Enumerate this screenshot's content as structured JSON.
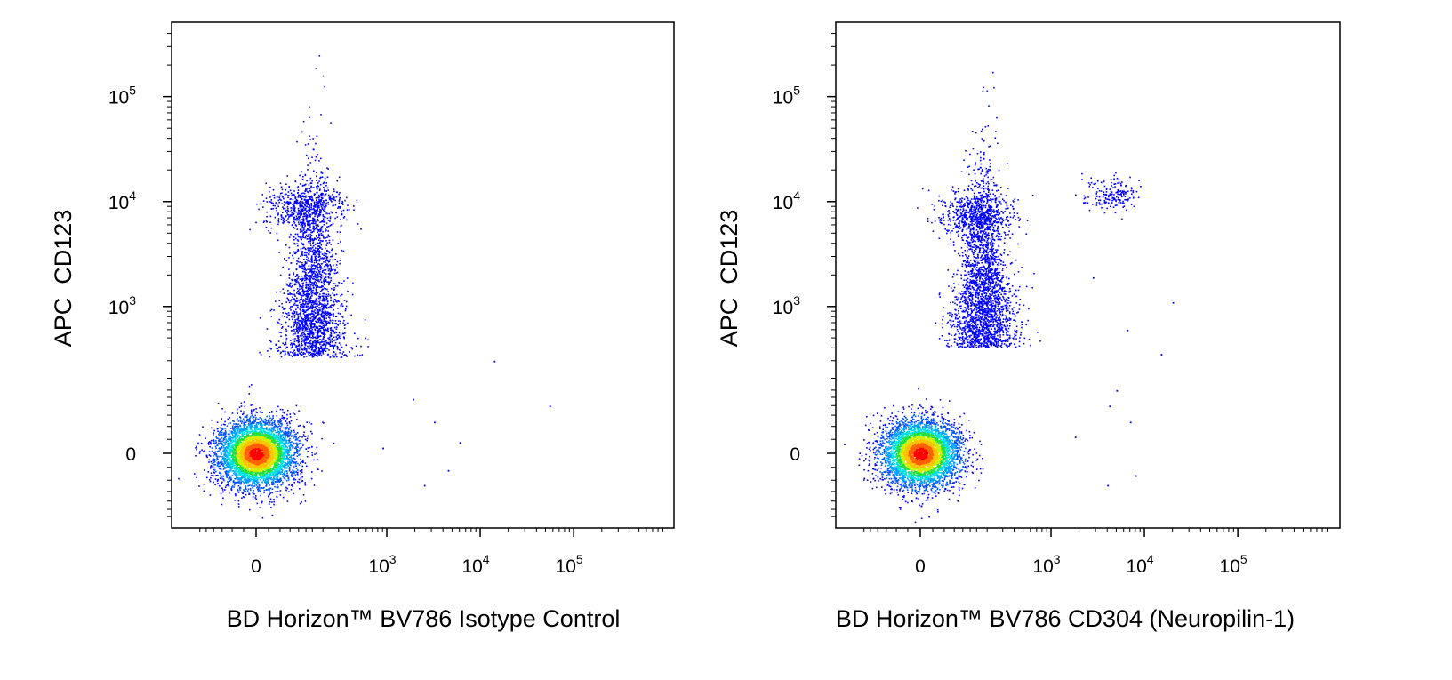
{
  "figure": {
    "background": "#ffffff",
    "colormap": [
      "#0000ff",
      "#0050ff",
      "#00a0ff",
      "#00e0e0",
      "#20e040",
      "#d0f000",
      "#ffc000",
      "#ff6000",
      "#ff0000"
    ]
  },
  "chart_data": [
    {
      "type": "scatter",
      "subtype": "flow-cytometry-density-dot-plot",
      "xlabel": "BD Horizon™ BV786 Isotype Control",
      "ylabel": "APC  CD123",
      "x_scale": "biexponential",
      "y_scale": "biexponential",
      "xlim": [
        -200,
        200000
      ],
      "ylim": [
        -200,
        250000
      ],
      "x_ticks": [
        {
          "value": 0,
          "base": "0",
          "exp": ""
        },
        {
          "value": 1000,
          "base": "10",
          "exp": "3"
        },
        {
          "value": 10000,
          "base": "10",
          "exp": "4"
        },
        {
          "value": 100000,
          "base": "10",
          "exp": "5"
        }
      ],
      "y_ticks": [
        {
          "value": 0,
          "base": "0",
          "exp": ""
        },
        {
          "value": 1000,
          "base": "10",
          "exp": "3"
        },
        {
          "value": 10000,
          "base": "10",
          "exp": "4"
        },
        {
          "value": 100000,
          "base": "10",
          "exp": "5"
        }
      ],
      "populations": [
        {
          "name": "",
          "center_x": 0,
          "center_y": 0,
          "weight": 0.55,
          "spread": "large"
        },
        {
          "name": "",
          "center_x": 150,
          "center_y": 400,
          "weight": 0.23,
          "spread": "vertical-tail"
        },
        {
          "name": "",
          "center_x": 120,
          "center_y": 9000,
          "weight": 0.07,
          "spread": "medium"
        }
      ],
      "outliers": [
        [
          1900,
          120
        ],
        [
          3200,
          60
        ],
        [
          4500,
          -30
        ],
        [
          14000,
          300
        ],
        [
          55000,
          100
        ],
        [
          900,
          10
        ],
        [
          2500,
          -60
        ],
        [
          6000,
          20
        ]
      ]
    },
    {
      "type": "scatter",
      "subtype": "flow-cytometry-density-dot-plot",
      "xlabel": "BD Horizon™ BV786 CD304 (Neuropilin-1)",
      "ylabel": "APC  CD123",
      "x_scale": "biexponential",
      "y_scale": "biexponential",
      "xlim": [
        -200,
        200000
      ],
      "ylim": [
        -200,
        250000
      ],
      "x_ticks": [
        {
          "value": 0,
          "base": "0",
          "exp": ""
        },
        {
          "value": 1000,
          "base": "10",
          "exp": "3"
        },
        {
          "value": 10000,
          "base": "10",
          "exp": "4"
        },
        {
          "value": 100000,
          "base": "10",
          "exp": "5"
        }
      ],
      "y_ticks": [
        {
          "value": 0,
          "base": "0",
          "exp": ""
        },
        {
          "value": 1000,
          "base": "10",
          "exp": "3"
        },
        {
          "value": 10000,
          "base": "10",
          "exp": "4"
        },
        {
          "value": 100000,
          "base": "10",
          "exp": "5"
        }
      ],
      "populations": [
        {
          "name": "",
          "center_x": 0,
          "center_y": 0,
          "weight": 0.52,
          "spread": "large"
        },
        {
          "name": "",
          "center_x": 180,
          "center_y": 500,
          "weight": 0.26,
          "spread": "vertical-tail"
        },
        {
          "name": "",
          "center_x": 150,
          "center_y": 7500,
          "weight": 0.07,
          "spread": "medium"
        },
        {
          "name": "",
          "center_x": 4500,
          "center_y": 12000,
          "weight": 0.02,
          "spread": "small"
        }
      ],
      "outliers": [
        [
          6500,
          600
        ],
        [
          5000,
          150
        ],
        [
          4200,
          100
        ],
        [
          7000,
          60
        ],
        [
          15000,
          350
        ],
        [
          20000,
          1100
        ],
        [
          2800,
          1900
        ],
        [
          1800,
          30
        ],
        [
          4000,
          -60
        ],
        [
          8000,
          -40
        ]
      ]
    }
  ]
}
